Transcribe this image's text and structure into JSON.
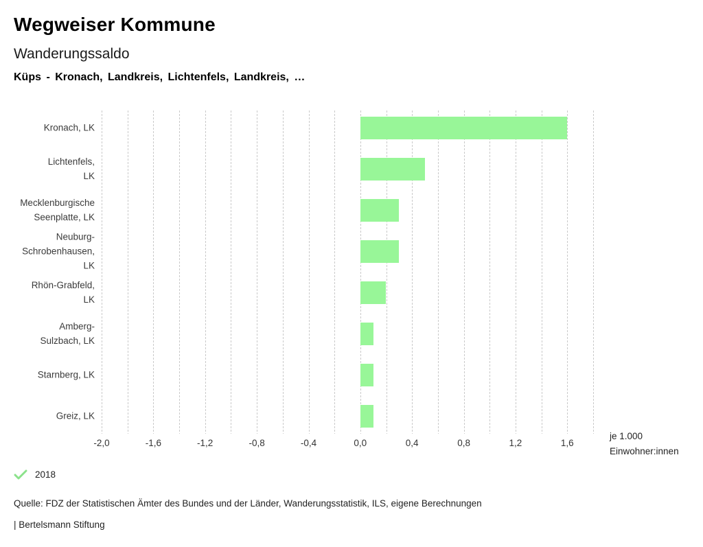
{
  "header": {
    "title": "Wegweiser Kommune",
    "subtitle": "Wanderungssaldo",
    "selection": "Küps - Kronach, Landkreis, Lichtenfels, Landkreis, …"
  },
  "chart_data": {
    "type": "bar",
    "orientation": "horizontal",
    "title": "Wanderungssaldo",
    "categories": [
      "Kronach, LK",
      "Lichtenfels, LK",
      "Mecklenburgische Seenplatte, LK",
      "Neuburg-Schrobenhausen, LK",
      "Rhön-Grabfeld, LK",
      "Amberg-Sulzbach, LK",
      "Starnberg, LK",
      "Greiz, LK"
    ],
    "category_label_lines": [
      [
        "Kronach, LK"
      ],
      [
        "Lichtenfels,",
        "LK"
      ],
      [
        "Mecklenburgische",
        "Seenplatte, LK"
      ],
      [
        "Neuburg-",
        "Schrobenhausen,",
        "LK"
      ],
      [
        "Rhön-Grabfeld,",
        "LK"
      ],
      [
        "Amberg-",
        "Sulzbach, LK"
      ],
      [
        "Starnberg, LK"
      ],
      [
        "Greiz, LK"
      ]
    ],
    "series": [
      {
        "name": "2018",
        "values": [
          1.6,
          0.5,
          0.3,
          0.3,
          0.2,
          0.1,
          0.1,
          0.1
        ]
      }
    ],
    "xlim": [
      -2.0,
      1.8
    ],
    "xtick_values": [
      -2.0,
      -1.6,
      -1.2,
      -0.8,
      -0.4,
      0.0,
      0.4,
      0.8,
      1.2,
      1.6
    ],
    "xtick_labels": [
      "-2,0",
      "-1,6",
      "-1,2",
      "-0,8",
      "-0,4",
      "0,0",
      "0,4",
      "0,8",
      "1,2",
      "1,6"
    ],
    "grid": true,
    "gridline_step": 0.2,
    "unit_label_line1": "je 1.000",
    "unit_label_line2": "Einwohner:innen",
    "bar_color": "#98f698",
    "gridline_color": "#c9c9c9",
    "legend_position": "bottom-left"
  },
  "legend": {
    "label": "2018",
    "check_color": "#8be28b"
  },
  "footer": {
    "source": "Quelle: FDZ der Statistischen Ämter des Bundes und der Länder, Wanderungsstatistik, ILS, eigene Berechnungen",
    "branding": "| Bertelsmann Stiftung"
  }
}
